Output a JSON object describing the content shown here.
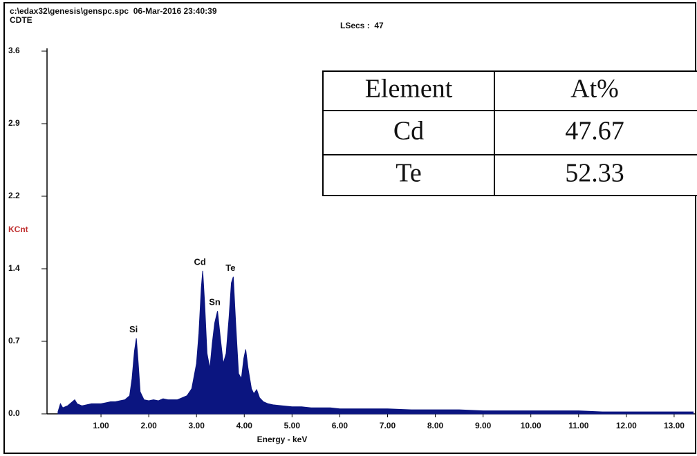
{
  "header": {
    "file": "c:\\edax32\\genesis\\genspc.spc  06-Mar-2016 23:40:39",
    "sample": "CDTE",
    "lsecs": "LSecs :  47"
  },
  "chart_data": {
    "type": "area",
    "ylabel": "KCnt",
    "xlabel": "Energy - keV",
    "x": [
      0.1,
      0.15,
      0.2,
      0.3,
      0.4,
      0.45,
      0.5,
      0.6,
      0.7,
      0.8,
      0.9,
      1.0,
      1.1,
      1.2,
      1.3,
      1.4,
      1.5,
      1.6,
      1.65,
      1.7,
      1.74,
      1.78,
      1.82,
      1.9,
      2.0,
      2.1,
      2.2,
      2.3,
      2.4,
      2.5,
      2.6,
      2.7,
      2.8,
      2.9,
      3.0,
      3.05,
      3.1,
      3.13,
      3.17,
      3.22,
      3.28,
      3.33,
      3.38,
      3.44,
      3.5,
      3.56,
      3.62,
      3.68,
      3.73,
      3.77,
      3.82,
      3.88,
      3.94,
      3.99,
      4.03,
      4.08,
      4.15,
      4.2,
      4.26,
      4.32,
      4.4,
      4.5,
      4.6,
      4.8,
      5.0,
      5.2,
      5.4,
      5.6,
      5.8,
      6.0,
      6.5,
      7.0,
      7.5,
      8.0,
      8.5,
      9.0,
      9.5,
      10.0,
      10.5,
      11.0,
      11.5,
      12.0,
      12.5,
      13.0,
      13.4
    ],
    "series": [
      {
        "color": "#0b1580",
        "values": [
          0.02,
          0.1,
          0.06,
          0.08,
          0.12,
          0.14,
          0.1,
          0.08,
          0.09,
          0.1,
          0.1,
          0.1,
          0.11,
          0.12,
          0.12,
          0.13,
          0.14,
          0.18,
          0.35,
          0.62,
          0.75,
          0.5,
          0.22,
          0.14,
          0.13,
          0.14,
          0.13,
          0.15,
          0.14,
          0.14,
          0.14,
          0.16,
          0.18,
          0.25,
          0.5,
          0.8,
          1.25,
          1.42,
          1.1,
          0.6,
          0.45,
          0.7,
          0.9,
          1.02,
          0.75,
          0.5,
          0.6,
          0.95,
          1.3,
          1.36,
          0.9,
          0.4,
          0.35,
          0.55,
          0.64,
          0.45,
          0.25,
          0.2,
          0.24,
          0.16,
          0.12,
          0.1,
          0.09,
          0.08,
          0.07,
          0.07,
          0.06,
          0.06,
          0.06,
          0.05,
          0.05,
          0.05,
          0.04,
          0.04,
          0.04,
          0.03,
          0.03,
          0.03,
          0.03,
          0.03,
          0.02,
          0.02,
          0.02,
          0.02,
          0.02
        ]
      }
    ],
    "annotations": [
      {
        "text": "Si",
        "x": 1.74
      },
      {
        "text": "Cd",
        "x": 3.13
      },
      {
        "text": "Sn",
        "x": 3.44
      },
      {
        "text": "Te",
        "x": 3.77
      }
    ],
    "xlim": [
      -0.13,
      13.45
    ],
    "xticks": [
      {
        "value": 1,
        "label": "1.00"
      },
      {
        "value": 2,
        "label": "2.00"
      },
      {
        "value": 3,
        "label": "3.00"
      },
      {
        "value": 4,
        "label": "4.00"
      },
      {
        "value": 5,
        "label": "5.00"
      },
      {
        "value": 6,
        "label": "6.00"
      },
      {
        "value": 7,
        "label": "7.00"
      },
      {
        "value": 8,
        "label": "8.00"
      },
      {
        "value": 9,
        "label": "9.00"
      },
      {
        "value": 10,
        "label": "10.00"
      },
      {
        "value": 11,
        "label": "11.00"
      },
      {
        "value": 12,
        "label": "12.00"
      },
      {
        "value": 13,
        "label": "13.00"
      }
    ],
    "ylim": [
      0,
      3.6
    ],
    "yticks": [
      {
        "value": 0,
        "label": "0.0"
      },
      {
        "value": 0.72,
        "label": "0.7"
      },
      {
        "value": 1.44,
        "label": "1.4"
      },
      {
        "value": 2.16,
        "label": "2.2"
      },
      {
        "value": 2.88,
        "label": "2.9"
      },
      3.6
    ]
  },
  "table": {
    "header": [
      "Element",
      "At%"
    ],
    "rows": [
      [
        "Cd",
        "47.67"
      ],
      [
        "Te",
        "52.33"
      ]
    ]
  }
}
